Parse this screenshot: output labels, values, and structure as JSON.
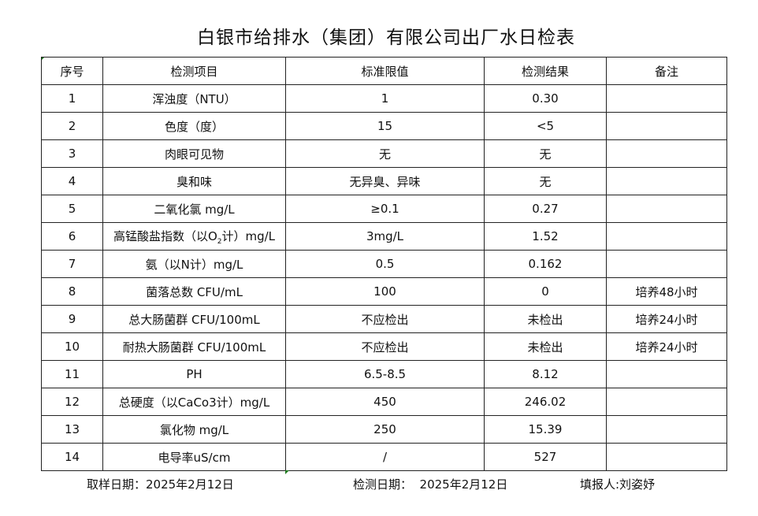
{
  "title": "白银市给排水（集团）有限公司出厂水日检表",
  "columns": [
    "序号",
    "检测项目",
    "标准限值",
    "检测结果",
    "备注"
  ],
  "rows": [
    {
      "no": "1",
      "item": "浑浊度（NTU）",
      "limit": "1",
      "result": "0.30",
      "note": ""
    },
    {
      "no": "2",
      "item": "色度（度）",
      "limit": "15",
      "result": "<5",
      "note": ""
    },
    {
      "no": "3",
      "item": "肉眼可见物",
      "limit": "无",
      "result": "无",
      "note": ""
    },
    {
      "no": "4",
      "item": "臭和味",
      "limit": "无异臭、异味",
      "result": "无",
      "note": ""
    },
    {
      "no": "5",
      "item": "二氧化氯 mg/L",
      "limit": "≥0.1",
      "result": "0.27",
      "note": ""
    },
    {
      "no": "6",
      "item": "高锰酸盐指数（以O",
      "item_sub": "2",
      "item_suffix": "计）mg/L",
      "limit": "3mg/L",
      "result": "1.52",
      "note": ""
    },
    {
      "no": "7",
      "item": "氨（以N计）mg/L",
      "limit": "0.5",
      "result": "0.162",
      "note": ""
    },
    {
      "no": "8",
      "item": "菌落总数 CFU/mL",
      "limit": "100",
      "result": "0",
      "note": "培养48小时"
    },
    {
      "no": "9",
      "item": "总大肠菌群 CFU/100mL",
      "limit": "不应检出",
      "result": "未检出",
      "note": "培养24小时"
    },
    {
      "no": "10",
      "item": "耐热大肠菌群 CFU/100mL",
      "limit": "不应检出",
      "result": "未检出",
      "note": "培养24小时"
    },
    {
      "no": "11",
      "item": "PH",
      "limit": "6.5-8.5",
      "result": "8.12",
      "note": ""
    },
    {
      "no": "12",
      "item": "总硬度（以CaCo3计）mg/L",
      "limit": "450",
      "result": "246.02",
      "note": ""
    },
    {
      "no": "13",
      "item": "氯化物 mg/L",
      "limit": "250",
      "result": "15.39",
      "note": ""
    },
    {
      "no": "14",
      "item": "电导率uS/cm",
      "limit": "/",
      "result": "527",
      "note": ""
    }
  ],
  "footer": {
    "sampling_date": "取样日期：2025年2月12日",
    "test_date": "检测日期：  2025年2月12日",
    "reporter": "填报人:刘姿妤"
  },
  "colors": {
    "cell_marker": "#1e7a1e",
    "border": "#222222"
  }
}
